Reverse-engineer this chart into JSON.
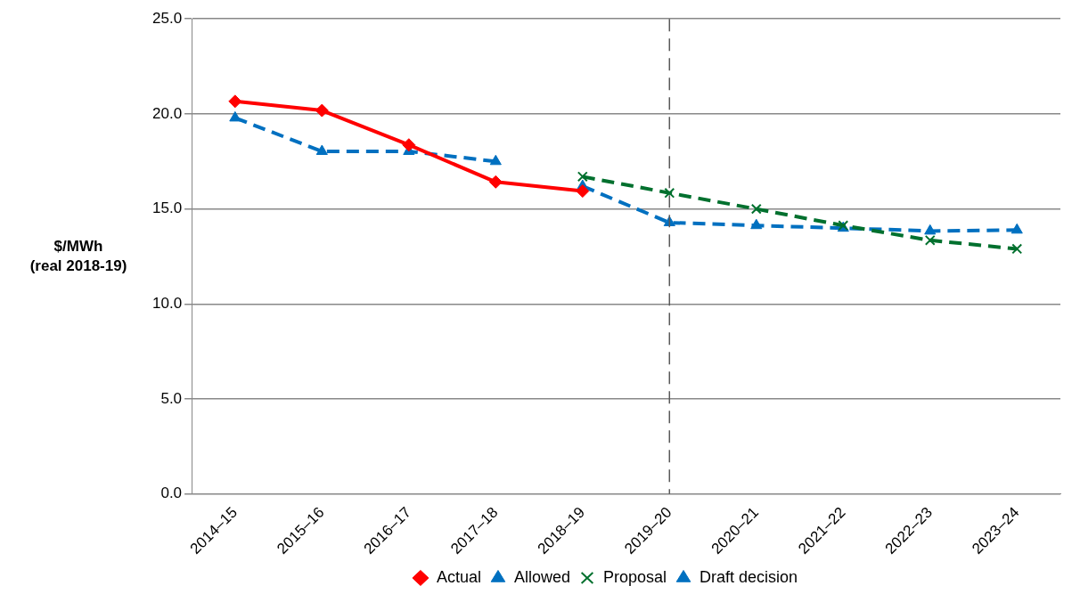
{
  "chart_data": {
    "type": "line",
    "ylabel": "$/MWh\n(real 2018-19)",
    "categories": [
      "2014–15",
      "2015–16",
      "2016–17",
      "2017–18",
      "2018–19",
      "2019–20",
      "2020–21",
      "2021–22",
      "2022–23",
      "2023–24"
    ],
    "series": [
      {
        "name": "Actual",
        "color": "#ff0000",
        "marker": "diamond",
        "line_style": "solid",
        "values": [
          20.66,
          20.18,
          18.37,
          16.42,
          15.94,
          null,
          null,
          null,
          null,
          null
        ]
      },
      {
        "name": "Allowed",
        "color": "#0070c0",
        "marker": "triangle",
        "line_style": "dashed",
        "values": [
          19.79,
          18.03,
          18.03,
          17.5,
          null,
          null,
          null,
          null,
          null,
          null
        ]
      },
      {
        "name": "Proposal",
        "color": "#00702e",
        "marker": "cross",
        "line_style": "dashed",
        "values": [
          null,
          null,
          null,
          null,
          16.7,
          15.84,
          15.0,
          14.13,
          13.35,
          12.9
        ]
      },
      {
        "name": "Draft decision",
        "color": "#0070c0",
        "marker": "triangle",
        "line_style": "dashed",
        "values": [
          null,
          null,
          null,
          null,
          16.2,
          14.28,
          14.13,
          13.99,
          13.84,
          13.89
        ]
      }
    ],
    "ylim": [
      0,
      25
    ],
    "yticks": [
      {
        "value": 0,
        "label": "0.0"
      },
      {
        "value": 5,
        "label": "5.0"
      },
      {
        "value": 10,
        "label": "10.0"
      },
      {
        "value": 15,
        "label": "15.0"
      },
      {
        "value": 20,
        "label": "20.0"
      },
      {
        "value": 25,
        "label": "25.0"
      }
    ],
    "grid": "y",
    "legend": "bottom",
    "ref_lines": [
      {
        "axis": "x",
        "value": "2019–20",
        "label": null,
        "color": "#595959",
        "line_style": "dashed"
      }
    ]
  }
}
